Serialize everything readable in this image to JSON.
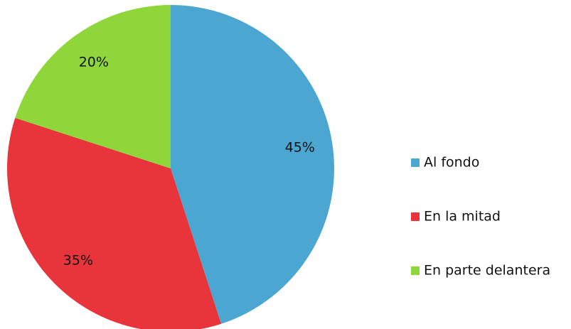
{
  "chart_data": {
    "type": "pie",
    "categories": [
      "Al fondo",
      "En la mitad",
      "En parte delantera"
    ],
    "values": [
      45,
      35,
      20
    ],
    "value_labels": [
      "45%",
      "35%",
      "20%"
    ],
    "colors": [
      "#4ba7d1",
      "#e8353b",
      "#8fd63b"
    ],
    "legend": "right"
  }
}
